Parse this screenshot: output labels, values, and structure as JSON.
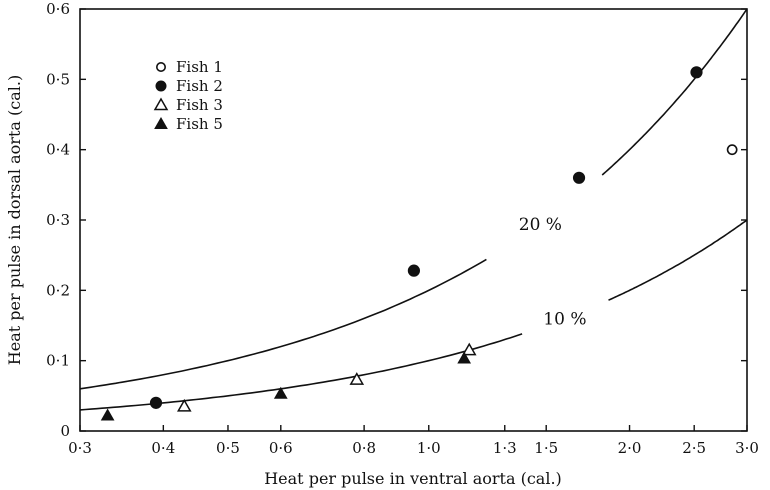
{
  "chart_data": {
    "type": "scatter",
    "title": "",
    "xlabel": "Heat per pulse in ventral aorta (cal.)",
    "ylabel": "Heat per pulse in dorsal aorta (cal.)",
    "x_scale": "log",
    "xlim": [
      0.3,
      3.0
    ],
    "ylim": [
      0,
      0.6
    ],
    "x_ticks": [
      {
        "value": 0.3,
        "label": "0·3"
      },
      {
        "value": 0.4,
        "label": "0·4"
      },
      {
        "value": 0.5,
        "label": "0·5"
      },
      {
        "value": 0.6,
        "label": "0·6"
      },
      {
        "value": 0.8,
        "label": "0·8"
      },
      {
        "value": 1.0,
        "label": "1·0"
      },
      {
        "value": 1.3,
        "label": "1·3"
      },
      {
        "value": 1.5,
        "label": "1·5"
      },
      {
        "value": 2.0,
        "label": "2·0"
      },
      {
        "value": 2.5,
        "label": "2·5"
      },
      {
        "value": 3.0,
        "label": "3·0"
      }
    ],
    "y_ticks": [
      {
        "value": 0,
        "label": "0"
      },
      {
        "value": 0.1,
        "label": "0·1"
      },
      {
        "value": 0.2,
        "label": "0·2"
      },
      {
        "value": 0.3,
        "label": "0·3"
      },
      {
        "value": 0.4,
        "label": "0·4"
      },
      {
        "value": 0.5,
        "label": "0·5"
      },
      {
        "value": 0.6,
        "label": "0·6"
      }
    ],
    "legend_position": "top-left",
    "series": [
      {
        "name": "Fish 1",
        "marker": "open-circle",
        "points": [
          [
            2.85,
            0.4
          ]
        ]
      },
      {
        "name": "Fish 2",
        "marker": "filled-circle",
        "points": [
          [
            0.39,
            0.04
          ],
          [
            0.95,
            0.228
          ],
          [
            1.68,
            0.36
          ],
          [
            2.52,
            0.51
          ]
        ]
      },
      {
        "name": "Fish 3",
        "marker": "open-triangle",
        "points": [
          [
            0.43,
            0.035
          ],
          [
            0.78,
            0.073
          ],
          [
            1.15,
            0.115
          ]
        ]
      },
      {
        "name": "Fish 5",
        "marker": "filled-triangle",
        "points": [
          [
            0.33,
            0.022
          ],
          [
            0.6,
            0.053
          ],
          [
            1.13,
            0.103
          ]
        ]
      }
    ],
    "reference_lines": [
      {
        "label": "20 %",
        "fraction": 0.2
      },
      {
        "label": "10 %",
        "fraction": 0.1
      }
    ],
    "grid": false
  }
}
